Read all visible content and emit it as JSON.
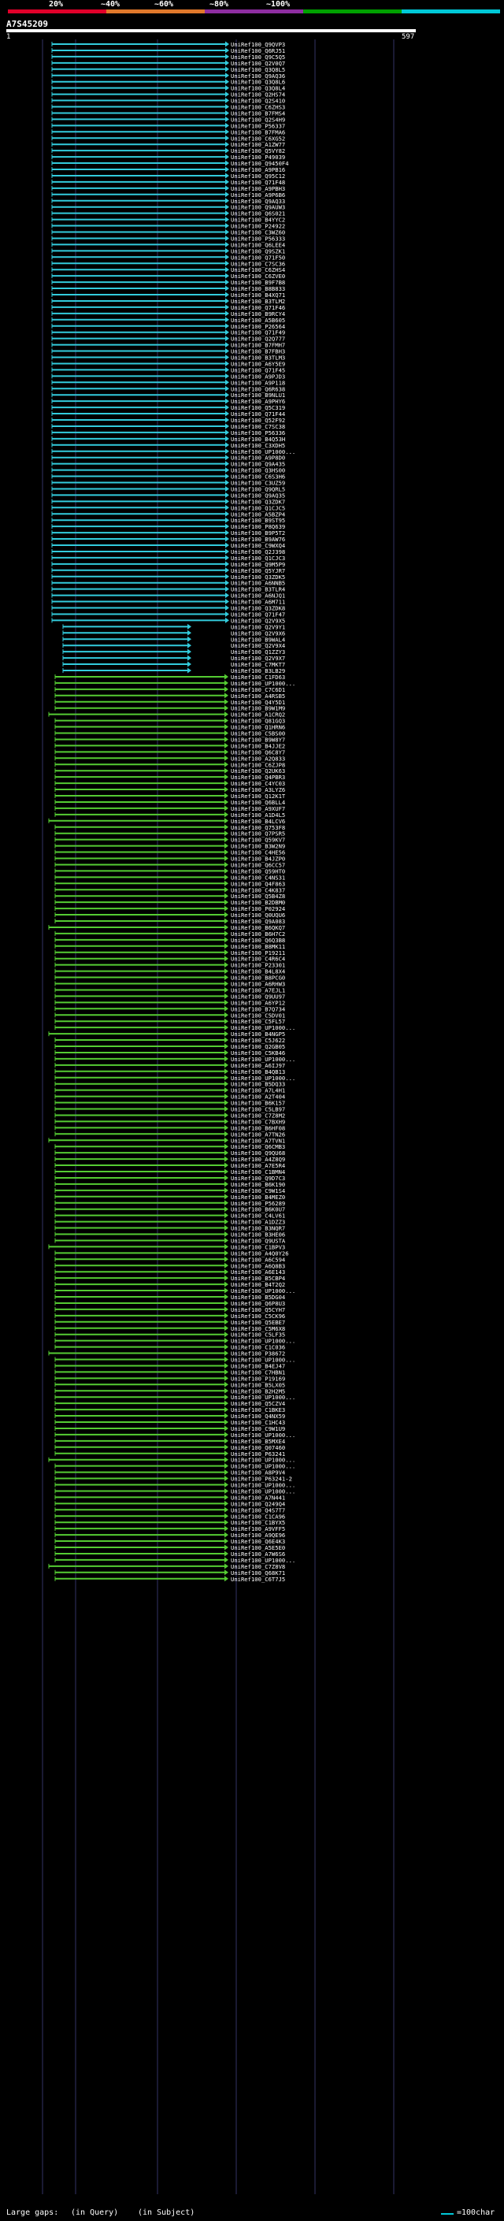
{
  "legend": {
    "labels": [
      "20%",
      "~40%",
      "~60%",
      "~80%",
      "~100%"
    ],
    "colors": [
      "#e0002a",
      "#e0782b",
      "#8d2da0",
      "#00a000",
      "#00c8d8"
    ]
  },
  "query": {
    "id": "A7S45209",
    "start": "1",
    "end": "597"
  },
  "chart_data": {
    "type": "alignment",
    "query_length": 597,
    "hits": [
      "UniRef100_Q9QVP3",
      "UniRef100_Q6RJ51",
      "UniRef100_Q9C5Q5",
      "UniRef100_Q2V0Q7",
      "UniRef100_Q3Q8L5",
      "UniRef100_Q9AQ36",
      "UniRef100_Q3Q8L6",
      "UniRef100_Q3Q8L4",
      "UniRef100_Q2HS74",
      "UniRef100_Q2S410",
      "UniRef100_C6ZHS3",
      "UniRef100_B7FMS4",
      "UniRef100_Q2S4H9",
      "UniRef100_P56337",
      "UniRef100_B7FMA6",
      "UniRef100_C6XG52",
      "UniRef100_A1ZW77",
      "UniRef100_Q5VY82",
      "UniRef100_P49039",
      "UniRef100_Q9450F4",
      "UniRef100_A9PB16",
      "UniRef100_Q95C12",
      "UniRef100_Q71F48",
      "UniRef100_A9PBH3",
      "UniRef100_A9P6B6",
      "UniRef100_Q9AQ33",
      "UniRef100_Q9AUW3",
      "UniRef100_Q6S021",
      "UniRef100_B4YYC2",
      "UniRef100_P24922",
      "UniRef100_C3WZ60",
      "UniRef100_P56333",
      "UniRef100_Q6LEE4",
      "UniRef100_Q9SZK1",
      "UniRef100_Q71F50",
      "UniRef100_C7SC36",
      "UniRef100_C6ZHS4",
      "UniRef100_C6ZVE0",
      "UniRef100_B9F7B8",
      "UniRef100_B8B833",
      "UniRef100_B4XQ71",
      "UniRef100_B3TLM2",
      "UniRef100_Q71F46",
      "UniRef100_B9RCY4",
      "UniRef100_A5B605",
      "UniRef100_P26564",
      "UniRef100_Q71F49",
      "UniRef100_Q2Q777",
      "UniRef100_B7FMH7",
      "UniRef100_B7FBH3",
      "UniRef100_B3TLM3",
      "UniRef100_A6Y5E9",
      "UniRef100_Q71F45",
      "UniRef100_A9PJD3",
      "UniRef100_A9P118",
      "UniRef100_Q6R638",
      "UniRef100_B9NLU1",
      "UniRef100_A9PHY6",
      "UniRef100_Q5C319",
      "UniRef100_Q71F44",
      "UniRef100_Q52F92",
      "UniRef100_C7SC38",
      "UniRef100_P56336",
      "UniRef100_B4Q53H",
      "UniRef100_C3XDH5",
      "UniRef100_UP1000...",
      "UniRef100_A9P8D0",
      "UniRef100_Q9A435",
      "UniRef100_Q3HS00",
      "UniRef100_C6S3H6",
      "UniRef100_C3UZ59",
      "UniRef100_Q9QRL5",
      "UniRef100_Q9AQ35",
      "UniRef100_Q3ZDK7",
      "UniRef100_Q1CJC5",
      "UniRef100_A5BZP4",
      "UniRef100_B9ST95",
      "UniRef100_P8Q639",
      "UniRef100_B9P5T2",
      "UniRef100_B9AW76",
      "UniRef100_C9WXQ4",
      "UniRef100_Q2J398",
      "UniRef100_Q1CJC3",
      "UniRef100_Q9M5P9",
      "UniRef100_Q5YJR7",
      "UniRef100_Q3ZDK5",
      "UniRef100_A6NNB5",
      "UniRef100_B3TLR4",
      "UniRef100_A6NJQ1",
      "UniRef100_A6M711",
      "UniRef100_Q3ZDK8",
      "UniRef100_Q71F47",
      "UniRef100_Q2V9X5",
      "UniRef100_Q2V9Y1",
      "UniRef100_Q2V9X6",
      "UniRef100_B9WAL4",
      "UniRef100_Q2V9X4",
      "UniRef100_Q1ZZY3",
      "UniRef100_Q2V9X7",
      "UniRef100_C7MKT7",
      "UniRef100_B3LB29",
      "UniRef100_C1FD63",
      "UniRef100_UP1000...",
      "UniRef100_C7C6D1",
      "UniRef100_A4RSB5",
      "UniRef100_Q4Y5D1",
      "UniRef100_B9W1M9",
      "UniRef100_A1CRQ2",
      "UniRef100_Q81GQ3",
      "UniRef100_Q1HRN6",
      "UniRef100_C5BS00",
      "UniRef100_B9W8Y7",
      "UniRef100_B4JJE2",
      "UniRef100_Q6C8Y7",
      "UniRef100_A2Q833",
      "UniRef100_C6ZJP8",
      "UniRef100_Q2UK63",
      "UniRef100_Q4PBR3",
      "UniRef100_C4YC03",
      "UniRef100_A3LYZ6",
      "UniRef100_Q12K1T",
      "UniRef100_Q6BLL4",
      "UniRef100_A9XUF7",
      "UniRef100_A1D4L5",
      "UniRef100_B4LCV6",
      "UniRef100_Q753F8",
      "UniRef100_Q7PSR5",
      "UniRef100_Q59KV7",
      "UniRef100_B3W2N9",
      "UniRef100_C4HE56",
      "UniRef100_B4JZP0",
      "UniRef100_Q6CC57",
      "UniRef100_Q59HT0",
      "UniRef100_C4NS31",
      "UniRef100_Q4F863",
      "UniRef100_C4K837",
      "UniRef100_Q5B4Z8",
      "UniRef100_B2DBM0",
      "UniRef100_P02924",
      "UniRef100_Q0UQU6",
      "UniRef100_Q9A083",
      "UniRef100_B6QKQ7",
      "UniRef100_B6H7C2",
      "UniRef100_Q6Q3B8",
      "UniRef100_B8MK11",
      "UniRef100_P19211",
      "UniRef100_C4R6C4",
      "UniRef100_P23301",
      "UniRef100_B4L8X4",
      "UniRef100_B8PCG0",
      "UniRef100_A6RHW3",
      "UniRef100_A7EJL1",
      "UniRef100_Q9UU97",
      "UniRef100_A6YP12",
      "UniRef100_B7Q734",
      "UniRef100_C5DV01",
      "UniRef100_C5FL57",
      "UniRef100_UP1000...",
      "UniRef100_B4NGP5",
      "UniRef100_C5J622",
      "UniRef100_Q2GB05",
      "UniRef100_C5KB46",
      "UniRef100_UP1000...",
      "UniRef100_A6IJ97",
      "UniRef100_B4QB13",
      "UniRef100_UP1000...",
      "UniRef100_B5DQ33",
      "UniRef100_A7L4H1",
      "UniRef100_A2T404",
      "UniRef100_B6K157",
      "UniRef100_C5LB97",
      "UniRef100_C7Z8M2",
      "UniRef100_C7BXH9",
      "UniRef100_B6HF08",
      "UniRef100_A7TN26",
      "UniRef100_A7TVN1",
      "UniRef100_Q6CMB3",
      "UniRef100_Q9QU68",
      "UniRef100_A4Z8Q9",
      "UniRef100_A7E5R4",
      "UniRef100_C1BMN4",
      "UniRef100_Q9D7C3",
      "UniRef100_B6K190",
      "UniRef100_C9W1S4",
      "UniRef100_B4MEZ0",
      "UniRef100_P56289",
      "UniRef100_B6K0U7",
      "UniRef100_C4LV61",
      "UniRef100_A1DZZ3",
      "UniRef100_B3NQR7",
      "UniRef100_B3HE06",
      "UniRef100_Q9USTA",
      "UniRef100_C1BPV3",
      "UniRef100_A4Q0Y26",
      "UniRef100_A6C594",
      "UniRef100_A6Q8B3",
      "UniRef100_A6E143",
      "UniRef100_B5CBP4",
      "UniRef100_B4T2Q2",
      "UniRef100_UP1000...",
      "UniRef100_B5DG04",
      "UniRef100_Q6P8U3",
      "UniRef100_Q5CYH7",
      "UniRef100_C5CK96",
      "UniRef100_Q5EBE7",
      "UniRef100_C5M6X8",
      "UniRef100_C5LF35",
      "UniRef100_UP1000...",
      "UniRef100_C1C036",
      "UniRef100_P38672",
      "UniRef100_UP1000...",
      "UniRef100_B4EJ47",
      "UniRef100_C7HBN1",
      "UniRef100_P19169",
      "UniRef100_B5LX05",
      "UniRef100_B2H2M5",
      "UniRef100_UP1000...",
      "UniRef100_Q5CZV4",
      "UniRef100_C1BKE3",
      "UniRef100_Q4NX59",
      "UniRef100_C1HC43",
      "UniRef100_C9W1U9",
      "UniRef100_UP1000...",
      "UniRef100_B5MXE4",
      "UniRef100_Q07460",
      "UniRef100_P63241",
      "UniRef100_UP1000...",
      "UniRef100_UP1000...",
      "UniRef100_A8P9V4",
      "UniRef100_P63241-2",
      "UniRef100_UP1000...",
      "UniRef100_UP1000...",
      "UniRef100_A7N441",
      "UniRef100_Q249Q4",
      "UniRef100_Q4S7T7",
      "UniRef100_C1CA96",
      "UniRef100_C1BYX5",
      "UniRef100_A9VFF5",
      "UniRef100_A9QE96",
      "UniRef100_Q6E4K3",
      "UniRef100_A5E5E0",
      "UniRef100_A7W6S6",
      "UniRef100_UP1000...",
      "UniRef100_C7Z8V8",
      "UniRef100_Q68K71",
      "UniRef100_C6T7J5"
    ]
  },
  "footer": {
    "large_gaps_label": "Large gaps:",
    "query_gap": "(in Query)",
    "subject_gap": "(in Subject)",
    "scale_label": "=100char"
  }
}
